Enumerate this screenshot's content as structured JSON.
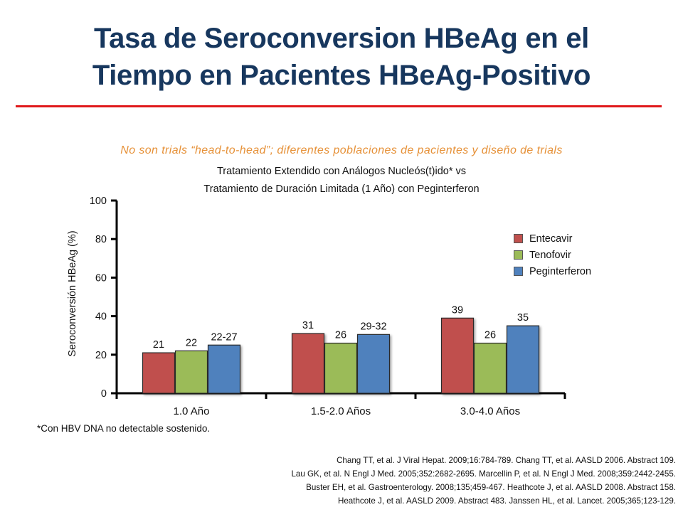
{
  "title_line1": "Tasa de Seroconversion HBeAg en el",
  "title_line2": "Tiempo en Pacientes HBeAg-Positivo",
  "disclaimer": "No son trials “head-to-head”; diferentes poblaciones de pacientes y diseño de trials",
  "footnote": "*Con HBV DNA no detectable sostenido.",
  "references": [
    "Chang TT, et al. J Viral Hepat. 2009;16:784-789.  Chang TT, et al. AASLD 2006. Abstract 109.",
    "Lau GK, et al. N Engl J Med. 2005;352:2682-2695.  Marcellin P, et al. N Engl J Med. 2008;359:2442-2455.",
    "Buster EH, et al. Gastroenterology. 2008;135;459-467.  Heathcote J, et al. AASLD 2008. Abstract 158.",
    "Heathcote J, et al. AASLD 2009. Abstract 483. Janssen HL, et al. Lancet. 2005;365;123-129."
  ],
  "colors": {
    "title": "#17375e",
    "rule": "#e0191b",
    "disclaimer": "#e69138",
    "entecavir": "#c0504d",
    "tenofovir": "#9bbb59",
    "peginterferon": "#4f81bd"
  },
  "chart_data": {
    "type": "bar",
    "subtitle_lines": [
      "Tratamiento Extendido con Análogos Nucleós(t)ido* vs",
      "Tratamiento de Duración Limitada (1 Año) con Peginterferon"
    ],
    "ylabel": "Seroconversión HBeAg (%)",
    "ylim": [
      0,
      100
    ],
    "yticks": [
      0,
      20,
      40,
      60,
      80,
      100
    ],
    "categories": [
      "1.0 Año",
      "1.5-2.0 Años",
      "3.0-4.0 Años"
    ],
    "legend_position": "right",
    "series": [
      {
        "name": "Entecavir",
        "color": "#c0504d",
        "values": [
          21,
          31,
          39
        ],
        "labels": [
          "21",
          "31",
          "39"
        ]
      },
      {
        "name": "Tenofovir",
        "color": "#9bbb59",
        "values": [
          22,
          26,
          26
        ],
        "labels": [
          "22",
          "26",
          "26"
        ]
      },
      {
        "name": "Peginterferon",
        "color": "#4f81bd",
        "values": [
          25,
          30.5,
          35
        ],
        "labels": [
          "22-27",
          "29-32",
          "35"
        ]
      }
    ]
  }
}
